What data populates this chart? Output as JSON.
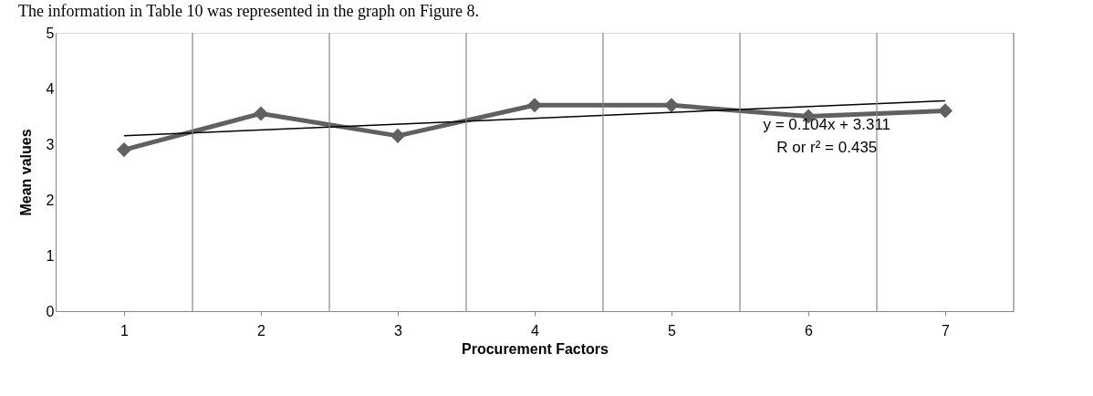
{
  "chart_data": {
    "type": "line",
    "xlabel": "Procurement Factors",
    "ylabel": "Mean values",
    "categories": [
      "1",
      "2",
      "3",
      "4",
      "5",
      "6",
      "7"
    ],
    "ylim": [
      0,
      5
    ],
    "yticks": [
      0,
      1,
      2,
      3,
      4,
      5
    ],
    "series": [
      {
        "color": "#606060",
        "values": [
          2.9,
          3.55,
          3.15,
          3.7,
          3.7,
          3.5,
          3.6
        ],
        "marker": "diamond",
        "line_style": "solid"
      },
      {
        "type": "line",
        "color": "#000000",
        "x": [
          "1",
          "7"
        ],
        "values": [
          3.15,
          3.78
        ],
        "marker": "none",
        "line_style": "solid"
      }
    ],
    "grid": "x",
    "annotations": [
      "The information in Table 10 was represented in the graph on Figure 8.",
      "y = 0.104x + 3.311",
      "R or r² = 0.435"
    ]
  }
}
